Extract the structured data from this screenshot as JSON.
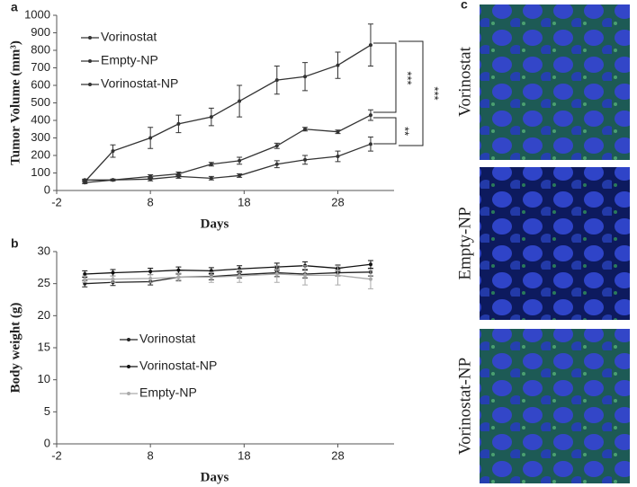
{
  "chart_data": [
    {
      "type": "line",
      "panel_label": "a",
      "y_label": "Tumor Volume (mm³)",
      "x_label": "Days",
      "xlim": [
        -2,
        34
      ],
      "xticks": [
        -2,
        8,
        18,
        28
      ],
      "ylim": [
        0,
        1000
      ],
      "yticks": [
        0,
        100,
        200,
        300,
        400,
        500,
        600,
        700,
        800,
        900,
        1000
      ],
      "legend": "upper left",
      "annotations": [
        "***",
        "**",
        "***"
      ],
      "series": [
        {
          "name": "Vorinostat",
          "color": "#333333",
          "x": [
            1,
            4,
            8,
            11,
            14.5,
            17.5,
            21.5,
            24.5,
            28,
            31.5
          ],
          "values": [
            45,
            60,
            65,
            80,
            70,
            85,
            150,
            175,
            195,
            265
          ],
          "errors": [
            5,
            5,
            10,
            10,
            10,
            10,
            20,
            25,
            30,
            40
          ]
        },
        {
          "name": "Empty-NP",
          "color": "#333333",
          "x": [
            1,
            4,
            8,
            11,
            14.5,
            17.5,
            21.5,
            24.5,
            28,
            31.5
          ],
          "values": [
            60,
            60,
            80,
            95,
            150,
            170,
            255,
            350,
            335,
            430
          ],
          "errors": [
            5,
            5,
            10,
            10,
            10,
            20,
            15,
            10,
            10,
            30
          ]
        },
        {
          "name": "Vorinostat-NP",
          "color": "#333333",
          "x": [
            1,
            4,
            8,
            11,
            14.5,
            17.5,
            21.5,
            24.5,
            28,
            31.5
          ],
          "values": [
            50,
            225,
            300,
            380,
            420,
            510,
            630,
            650,
            715,
            830
          ],
          "errors": [
            10,
            35,
            60,
            50,
            50,
            90,
            80,
            80,
            75,
            120
          ]
        }
      ]
    },
    {
      "type": "line",
      "panel_label": "b",
      "y_label": "Body weight (g)",
      "x_label": "Days",
      "xlim": [
        -2,
        34
      ],
      "xticks": [
        -2,
        8,
        18,
        28
      ],
      "ylim": [
        0,
        30
      ],
      "yticks": [
        0,
        5,
        10,
        15,
        20,
        25,
        30
      ],
      "legend": "center left",
      "series": [
        {
          "name": "Vorinostat",
          "color": "#222222",
          "x": [
            1,
            4,
            8,
            11,
            14.5,
            17.5,
            21.5,
            24.5,
            28,
            31.5
          ],
          "values": [
            25,
            25.2,
            25.3,
            26,
            26.1,
            26.4,
            26.7,
            26.5,
            26.7,
            26.8
          ],
          "errors": [
            0.5,
            0.5,
            0.5,
            0.5,
            0.5,
            0.5,
            0.6,
            0.6,
            0.5,
            0.6
          ]
        },
        {
          "name": "Vorinostat-NP",
          "color": "#111111",
          "x": [
            1,
            4,
            8,
            11,
            14.5,
            17.5,
            21.5,
            24.5,
            28,
            31.5
          ],
          "values": [
            26.5,
            26.7,
            26.9,
            27.1,
            27,
            27.3,
            27.6,
            27.8,
            27.4,
            28
          ],
          "errors": [
            0.5,
            0.5,
            0.5,
            0.5,
            0.5,
            0.5,
            0.6,
            0.6,
            0.5,
            0.6
          ]
        },
        {
          "name": "Empty-NP",
          "color": "#aaaaaa",
          "x": [
            1,
            4,
            8,
            11,
            14.5,
            17.5,
            21.5,
            24.5,
            28,
            31.5
          ],
          "values": [
            25.7,
            25.7,
            25.8,
            26,
            26,
            26.2,
            26.5,
            26.3,
            26.3,
            25.7
          ],
          "errors": [
            0.5,
            0.5,
            0.6,
            0.6,
            0.8,
            1,
            1.3,
            1.5,
            1.5,
            1.5
          ]
        }
      ]
    }
  ],
  "images": {
    "panel_label": "c",
    "labels": [
      "Vorinostat",
      "Empty-NP",
      "Vorinostat-NP"
    ]
  }
}
